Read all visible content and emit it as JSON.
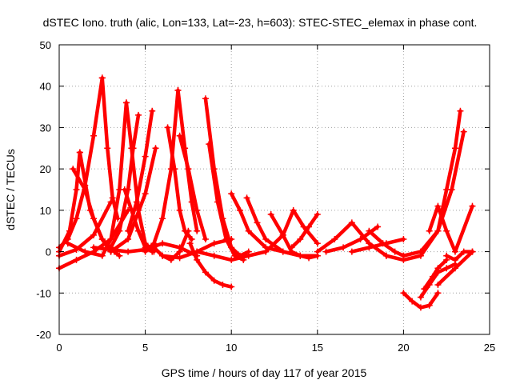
{
  "chart_data": {
    "type": "line",
    "title": "dSTEC Iono. truth (alic, Lon=133, Lat=-23, h=603): STEC-STEC_elemax in phase cont.",
    "xlabel": "GPS time / hours of day 117 of year 2015",
    "ylabel": "dSTEC  / TECUs",
    "xlim": [
      0,
      25
    ],
    "ylim": [
      -20,
      50
    ],
    "xticks": [
      0,
      5,
      10,
      15,
      20,
      25
    ],
    "yticks": [
      -20,
      -10,
      0,
      10,
      20,
      30,
      40,
      50
    ],
    "grid": true,
    "marker": "plus",
    "color": "#ff0000",
    "series": [
      {
        "x": [
          0.0,
          0.5,
          1.0,
          1.5,
          2.0,
          2.5
        ],
        "y": [
          1,
          3,
          8,
          16,
          28,
          42
        ]
      },
      {
        "x": [
          2.5,
          2.8,
          3.1,
          3.4
        ],
        "y": [
          42,
          25,
          13,
          8
        ]
      },
      {
        "x": [
          0.0,
          0.6,
          1.0,
          1.2
        ],
        "y": [
          0,
          5,
          15,
          24
        ]
      },
      {
        "x": [
          1.2,
          1.8,
          2.5,
          3.2,
          3.5
        ],
        "y": [
          24,
          10,
          3,
          0,
          -1
        ]
      },
      {
        "x": [
          0.0,
          1.0,
          2.0,
          3.0
        ],
        "y": [
          -1,
          0.5,
          4,
          12
        ]
      },
      {
        "x": [
          0.0,
          1.0,
          2.0,
          3.0,
          4.0
        ],
        "y": [
          -4,
          -2,
          0,
          3,
          10
        ]
      },
      {
        "x": [
          0.8,
          1.5,
          2.0,
          2.5,
          3.0
        ],
        "y": [
          20,
          15,
          8,
          3,
          0
        ]
      },
      {
        "x": [
          0.5,
          1.5,
          2.5,
          3.0,
          3.5,
          3.9
        ],
        "y": [
          2,
          0,
          -1,
          3,
          15,
          36
        ]
      },
      {
        "x": [
          3.9,
          4.2,
          4.6,
          5.0,
          5.5
        ],
        "y": [
          36,
          25,
          10,
          2,
          0
        ]
      },
      {
        "x": [
          3.0,
          3.5,
          4.0,
          4.3,
          4.6
        ],
        "y": [
          1,
          5,
          15,
          25,
          33
        ]
      },
      {
        "x": [
          3.8,
          4.2,
          4.6,
          5.0,
          5.4
        ],
        "y": [
          15,
          10,
          5,
          1,
          0
        ]
      },
      {
        "x": [
          4.0,
          4.5,
          5.0,
          5.4
        ],
        "y": [
          5,
          12,
          23,
          34
        ]
      },
      {
        "x": [
          3.0,
          4.0,
          5.0,
          5.6
        ],
        "y": [
          0,
          3,
          14,
          25
        ]
      },
      {
        "x": [
          2.0,
          3.0,
          4.0,
          5.0,
          6.0,
          7.0,
          8.0
        ],
        "y": [
          1,
          0.5,
          0,
          0.5,
          2,
          1,
          -1
        ]
      },
      {
        "x": [
          6.3,
          6.7,
          7.0,
          7.3,
          7.7
        ],
        "y": [
          30,
          20,
          10,
          5,
          3
        ]
      },
      {
        "x": [
          5.0,
          5.5,
          6.0,
          6.5,
          6.9
        ],
        "y": [
          0,
          2,
          8,
          20,
          39
        ]
      },
      {
        "x": [
          6.9,
          7.3,
          7.7,
          8.0
        ],
        "y": [
          39,
          25,
          12,
          5
        ]
      },
      {
        "x": [
          7.0,
          7.5,
          8.0,
          8.5
        ],
        "y": [
          28,
          20,
          10,
          3
        ]
      },
      {
        "x": [
          6.0,
          7.0,
          8.0,
          9.0,
          10.0
        ],
        "y": [
          -1,
          -1.5,
          0,
          2,
          3
        ]
      },
      {
        "x": [
          5.5,
          6.0,
          6.5,
          7.0,
          7.5
        ],
        "y": [
          1,
          -1,
          -2,
          0,
          5
        ]
      },
      {
        "x": [
          8.5,
          9.0,
          9.5,
          10.0,
          10.5,
          11.0
        ],
        "y": [
          37,
          20,
          8,
          1,
          -1,
          0
        ]
      },
      {
        "x": [
          8.7,
          9.2,
          9.7,
          10.2,
          10.7
        ],
        "y": [
          26,
          12,
          3,
          -1,
          -2
        ]
      },
      {
        "x": [
          7.6,
          8.0,
          8.5,
          9.0,
          9.5,
          10.0
        ],
        "y": [
          2,
          -2,
          -5,
          -7,
          -8,
          -8.5
        ]
      },
      {
        "x": [
          8.0,
          9.0,
          10.0,
          11.0,
          12.0
        ],
        "y": [
          0,
          -1,
          -2,
          -1,
          0
        ]
      },
      {
        "x": [
          10.0,
          10.5,
          11.0,
          12.0,
          13.0,
          14.0,
          15.0
        ],
        "y": [
          14,
          10,
          5,
          1,
          0,
          -1,
          -1
        ]
      },
      {
        "x": [
          10.9,
          11.5,
          12.0,
          13.0,
          14.0
        ],
        "y": [
          13,
          7,
          3,
          0,
          -1
        ]
      },
      {
        "x": [
          12.3,
          13.0,
          13.5,
          14.0,
          14.5,
          15.0
        ],
        "y": [
          9,
          4,
          0,
          -1,
          -1.5,
          -1
        ]
      },
      {
        "x": [
          12.0,
          13.0,
          13.6,
          14.2,
          15.0
        ],
        "y": [
          0,
          4,
          10,
          6,
          2
        ]
      },
      {
        "x": [
          13.5,
          14.0,
          14.5,
          15.0
        ],
        "y": [
          1,
          3,
          6,
          9
        ]
      },
      {
        "x": [
          15.0,
          16.0,
          17.0,
          18.0,
          19.0
        ],
        "y": [
          0,
          3,
          7,
          2,
          -1
        ]
      },
      {
        "x": [
          15.5,
          16.5,
          17.5,
          18.5
        ],
        "y": [
          0,
          1,
          3,
          6
        ]
      },
      {
        "x": [
          18.0,
          18.8,
          19.5,
          20.0
        ],
        "y": [
          5,
          2,
          0,
          -1
        ]
      },
      {
        "x": [
          17.0,
          18.0,
          19.0,
          20.0
        ],
        "y": [
          0,
          1,
          2,
          3
        ]
      },
      {
        "x": [
          20.0,
          20.5,
          21.0,
          21.5,
          22.0
        ],
        "y": [
          -10,
          -12,
          -13.5,
          -13,
          -10
        ]
      },
      {
        "x": [
          21.0,
          21.5,
          22.0,
          22.5,
          23.0
        ],
        "y": [
          -11,
          -8,
          -5,
          -4,
          -3
        ]
      },
      {
        "x": [
          21.2,
          21.7,
          22.0,
          22.5
        ],
        "y": [
          -9,
          -6,
          -4,
          -2
        ]
      },
      {
        "x": [
          22.0,
          23.0,
          24.0
        ],
        "y": [
          -8,
          -4,
          0
        ]
      },
      {
        "x": [
          19.0,
          20.0,
          21.0,
          22.0,
          22.5,
          23.0,
          23.3
        ],
        "y": [
          -1,
          -2,
          -1,
          5,
          15,
          25,
          34
        ]
      },
      {
        "x": [
          20.0,
          21.0,
          22.0,
          22.8,
          23.5
        ],
        "y": [
          -1,
          0,
          5,
          15,
          29
        ]
      },
      {
        "x": [
          21.5,
          22.0,
          22.5,
          23.0,
          24.0
        ],
        "y": [
          5,
          11,
          5,
          0,
          11
        ]
      },
      {
        "x": [
          22.5,
          23.0,
          23.5,
          24.0
        ],
        "y": [
          -1,
          -2,
          0,
          0
        ]
      }
    ]
  }
}
